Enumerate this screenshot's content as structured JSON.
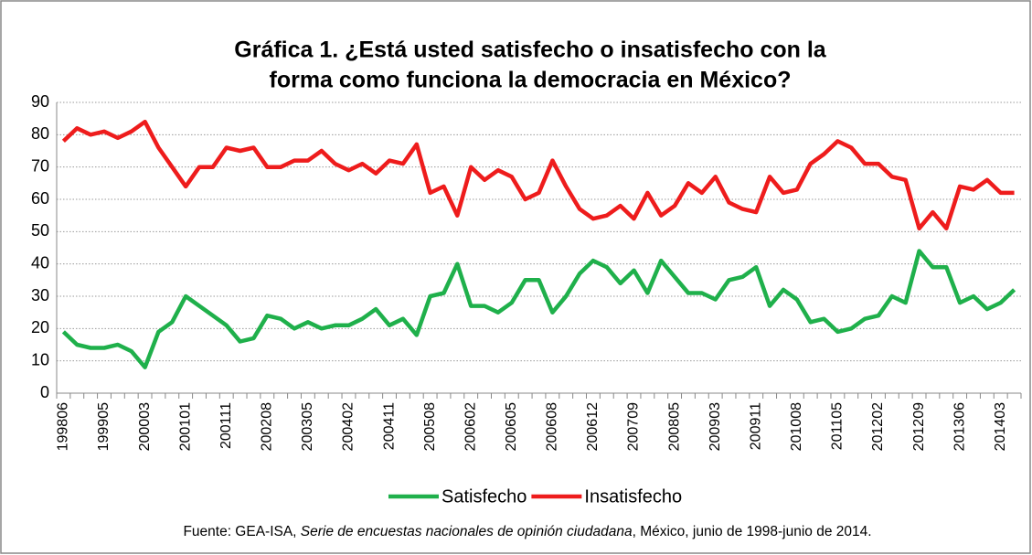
{
  "chart_data": {
    "type": "line",
    "title": [
      "Gráfica 1. ¿Está usted satisfecho o insatisfecho con la",
      "forma como funciona la democracia en México?"
    ],
    "categories": [
      "199806",
      null,
      null,
      "199905",
      null,
      null,
      "200003",
      null,
      null,
      "200101",
      null,
      null,
      "200111",
      null,
      null,
      "200208",
      null,
      null,
      "200305",
      null,
      null,
      "200402",
      null,
      null,
      "200411",
      null,
      null,
      "200508",
      null,
      null,
      "200602",
      null,
      null,
      "200605",
      null,
      null,
      "200608",
      null,
      null,
      "200612",
      null,
      null,
      "200709",
      null,
      null,
      "200805",
      null,
      null,
      "200903",
      null,
      null,
      "200911",
      null,
      null,
      "201008",
      null,
      null,
      "201105",
      null,
      null,
      "201202",
      null,
      null,
      "201209",
      null,
      null,
      "201306",
      null,
      null,
      "201403",
      null
    ],
    "series": [
      {
        "name": "Satisfecho",
        "color": "#1fb04b",
        "values": [
          19,
          15,
          14,
          14,
          15,
          13,
          8,
          19,
          22,
          30,
          27,
          24,
          21,
          16,
          17,
          24,
          23,
          20,
          22,
          20,
          21,
          21,
          23,
          26,
          21,
          23,
          18,
          30,
          31,
          40,
          27,
          27,
          25,
          28,
          35,
          35,
          25,
          30,
          37,
          41,
          39,
          34,
          38,
          31,
          41,
          36,
          31,
          31,
          29,
          35,
          36,
          39,
          27,
          32,
          29,
          22,
          23,
          19,
          20,
          23,
          24,
          30,
          28,
          44,
          39,
          39,
          28,
          30,
          26,
          28,
          32
        ]
      },
      {
        "name": "Insatisfecho",
        "color": "#ee1c1c",
        "values": [
          78,
          82,
          80,
          81,
          79,
          81,
          84,
          76,
          70,
          64,
          70,
          70,
          76,
          75,
          76,
          70,
          70,
          72,
          72,
          75,
          71,
          69,
          71,
          68,
          72,
          71,
          77,
          62,
          64,
          55,
          70,
          66,
          69,
          67,
          60,
          62,
          72,
          64,
          57,
          54,
          55,
          58,
          54,
          62,
          55,
          58,
          65,
          62,
          67,
          59,
          57,
          56,
          67,
          62,
          63,
          71,
          74,
          78,
          76,
          71,
          71,
          67,
          66,
          51,
          56,
          51,
          64,
          63,
          66,
          62,
          62
        ]
      }
    ],
    "ylim": [
      0,
      90
    ],
    "yticks": [
      0,
      10,
      20,
      30,
      40,
      50,
      60,
      70,
      80,
      90
    ],
    "grid": true,
    "source": [
      "Fuente: GEA-ISA, ",
      "Serie de encuestas nacionales de opinión ciudadana",
      ", México, junio de 1998-junio de 2014."
    ]
  }
}
